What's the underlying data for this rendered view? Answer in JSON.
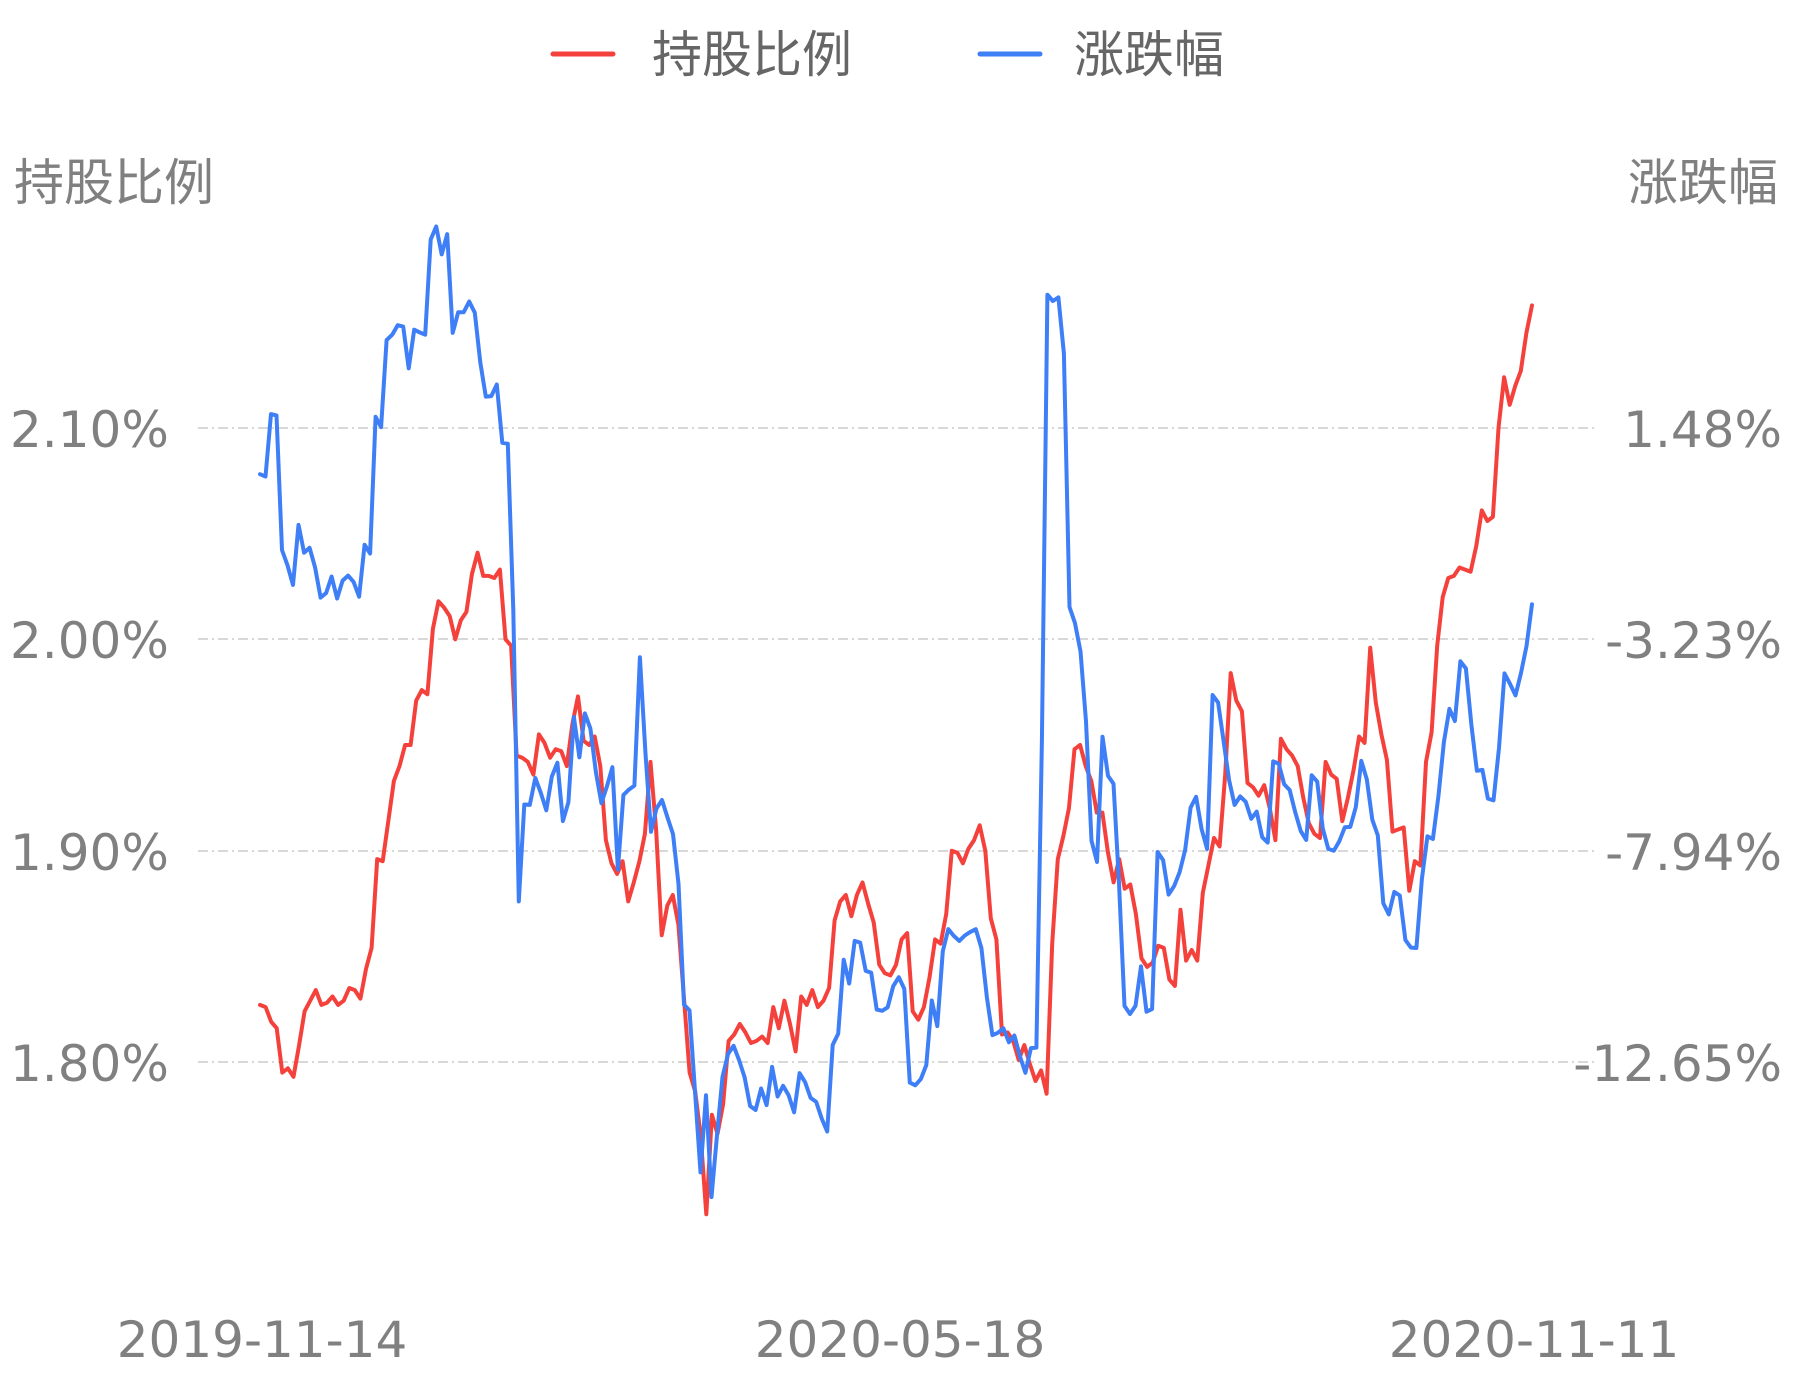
{
  "chart_data": {
    "type": "line",
    "legend": {
      "position": "top-center",
      "items": [
        {
          "label": "持股比例",
          "color": "#f5413c"
        },
        {
          "label": "涨跌幅",
          "color": "#3e7ef7"
        }
      ]
    },
    "y_left": {
      "label": "持股比例",
      "ticks": [
        "2.10%",
        "2.00%",
        "1.90%",
        "1.80%"
      ],
      "tick_values": [
        2.1,
        2.0,
        1.9,
        1.8
      ],
      "range": [
        1.7,
        2.2
      ]
    },
    "y_right": {
      "label": "涨跌幅",
      "ticks": [
        "1.48%",
        "-3.23%",
        "-7.94%",
        "-12.65%"
      ],
      "tick_values": [
        1.48,
        -3.23,
        -7.94,
        -12.65
      ],
      "range": [
        -17.36,
        6.19
      ]
    },
    "x_axis": {
      "ticks": [
        "2019-11-14",
        "2020-05-18",
        "2020-11-11"
      ]
    },
    "grid": true,
    "series": [
      {
        "name": "持股比例",
        "color": "#f5413c",
        "axis": "left",
        "values": [
          1.827,
          1.826,
          1.819,
          1.816,
          1.795,
          1.797,
          1.793,
          1.808,
          1.824,
          1.829,
          1.834,
          1.827,
          1.828,
          1.831,
          1.827,
          1.829,
          1.835,
          1.834,
          1.83,
          1.844,
          1.854,
          1.896,
          1.895,
          1.914,
          1.933,
          1.94,
          1.95,
          1.95,
          1.971,
          1.976,
          1.974,
          2.005,
          2.018,
          2.015,
          2.011,
          2.0,
          2.009,
          2.013,
          2.031,
          2.041,
          2.03,
          2.03,
          2.029,
          2.033,
          2.0,
          1.997,
          1.945,
          1.944,
          1.942,
          1.936,
          1.955,
          1.951,
          1.944,
          1.948,
          1.947,
          1.94,
          1.96,
          1.973,
          1.952,
          1.95,
          1.954,
          1.94,
          1.905,
          1.894,
          1.889,
          1.895,
          1.876,
          1.885,
          1.895,
          1.908,
          1.942,
          1.91,
          1.86,
          1.874,
          1.879,
          1.865,
          1.83,
          1.795,
          1.786,
          1.765,
          1.728,
          1.775,
          1.766,
          1.78,
          1.81,
          1.813,
          1.818,
          1.814,
          1.809,
          1.81,
          1.812,
          1.809,
          1.826,
          1.816,
          1.829,
          1.818,
          1.805,
          1.831,
          1.827,
          1.834,
          1.826,
          1.829,
          1.835,
          1.867,
          1.876,
          1.879,
          1.869,
          1.879,
          1.885,
          1.875,
          1.866,
          1.846,
          1.842,
          1.841,
          1.846,
          1.858,
          1.861,
          1.824,
          1.82,
          1.826,
          1.84,
          1.858,
          1.856,
          1.87,
          1.9,
          1.899,
          1.894,
          1.901,
          1.905,
          1.912,
          1.9,
          1.868,
          1.858,
          1.813,
          1.814,
          1.81,
          1.801,
          1.808,
          1.799,
          1.791,
          1.796,
          1.785,
          1.856,
          1.896,
          1.907,
          1.92,
          1.948,
          1.95,
          1.94,
          1.933,
          1.918,
          1.918,
          1.899,
          1.885,
          1.896,
          1.882,
          1.884,
          1.87,
          1.849,
          1.845,
          1.847,
          1.855,
          1.854,
          1.839,
          1.836,
          1.872,
          1.848,
          1.853,
          1.848,
          1.88,
          1.893,
          1.906,
          1.902,
          1.936,
          1.984,
          1.971,
          1.966,
          1.932,
          1.93,
          1.926,
          1.931,
          1.92,
          1.905,
          1.953,
          1.948,
          1.945,
          1.94,
          1.925,
          1.913,
          1.908,
          1.906,
          1.942,
          1.936,
          1.934,
          1.914,
          1.925,
          1.938,
          1.954,
          1.951,
          1.996,
          1.97,
          1.955,
          1.943,
          1.909,
          1.91,
          1.911,
          1.881,
          1.895,
          1.893,
          1.942,
          1.956,
          1.997,
          2.02,
          2.029,
          2.03,
          2.034,
          2.033,
          2.032,
          2.044,
          2.061,
          2.056,
          2.058,
          2.1,
          2.124,
          2.111,
          2.12,
          2.127,
          2.145,
          2.158
        ]
      },
      {
        "name": "涨跌幅",
        "color": "#3e7ef7",
        "axis": "right",
        "values": [
          0.45,
          0.4,
          1.79,
          1.76,
          -1.24,
          -1.58,
          -2.02,
          -0.68,
          -1.3,
          -1.19,
          -1.63,
          -2.3,
          -2.2,
          -1.83,
          -2.32,
          -1.92,
          -1.81,
          -1.95,
          -2.28,
          -1.12,
          -1.32,
          1.73,
          1.5,
          3.44,
          3.56,
          3.77,
          3.74,
          2.81,
          3.67,
          3.61,
          3.56,
          5.68,
          5.97,
          5.35,
          5.8,
          3.6,
          4.06,
          4.06,
          4.3,
          4.05,
          2.94,
          2.18,
          2.19,
          2.45,
          1.15,
          1.13,
          -2.58,
          -9.07,
          -6.91,
          -6.92,
          -6.32,
          -6.65,
          -7.04,
          -6.29,
          -5.98,
          -7.28,
          -6.86,
          -4.96,
          -5.86,
          -4.88,
          -5.22,
          -6.19,
          -6.88,
          -6.51,
          -6.08,
          -8.36,
          -6.7,
          -6.58,
          -6.49,
          -3.63,
          -5.78,
          -7.52,
          -7.0,
          -6.81,
          -7.2,
          -7.57,
          -8.68,
          -11.37,
          -11.5,
          -13.3,
          -15.11,
          -13.39,
          -15.66,
          -14.28,
          -12.98,
          -12.47,
          -12.29,
          -12.61,
          -12.99,
          -13.63,
          -13.72,
          -13.24,
          -13.61,
          -12.76,
          -13.42,
          -13.18,
          -13.39,
          -13.77,
          -12.9,
          -13.1,
          -13.45,
          -13.54,
          -13.91,
          -14.2,
          -12.27,
          -12.02,
          -10.37,
          -10.9,
          -9.95,
          -9.99,
          -10.62,
          -10.66,
          -11.48,
          -11.51,
          -11.43,
          -10.96,
          -10.76,
          -11.02,
          -13.11,
          -13.17,
          -13.03,
          -12.72,
          -11.28,
          -11.85,
          -10.18,
          -9.69,
          -9.84,
          -9.95,
          -9.83,
          -9.75,
          -9.69,
          -10.11,
          -11.21,
          -12.05,
          -12.0,
          -11.9,
          -12.21,
          -12.06,
          -12.52,
          -12.89,
          -12.34,
          -12.33,
          -5.49,
          4.45,
          4.31,
          4.39,
          3.14,
          -2.51,
          -2.87,
          -3.5,
          -5.06,
          -7.72,
          -8.19,
          -5.4,
          -6.27,
          -6.45,
          -8.66,
          -11.4,
          -11.58,
          -11.4,
          -10.52,
          -11.53,
          -11.47,
          -7.97,
          -8.15,
          -8.92,
          -8.73,
          -8.42,
          -7.93,
          -6.98,
          -6.74,
          -7.46,
          -7.9,
          -4.47,
          -4.64,
          -5.5,
          -6.37,
          -6.92,
          -6.73,
          -6.85,
          -7.23,
          -7.07,
          -7.64,
          -7.76,
          -5.95,
          -6.0,
          -6.46,
          -6.59,
          -7.08,
          -7.5,
          -7.7,
          -6.26,
          -6.4,
          -7.45,
          -7.9,
          -7.94,
          -7.73,
          -7.42,
          -7.41,
          -6.97,
          -5.94,
          -6.35,
          -7.25,
          -7.6,
          -9.11,
          -9.36,
          -8.86,
          -8.94,
          -9.93,
          -10.1,
          -10.11,
          -8.57,
          -7.62,
          -7.68,
          -6.73,
          -5.52,
          -4.78,
          -5.05,
          -3.72,
          -3.88,
          -5.14,
          -6.16,
          -6.14,
          -6.78,
          -6.82,
          -5.65,
          -3.99,
          -4.22,
          -4.48,
          -3.98,
          -3.38,
          -2.45
        ]
      }
    ]
  }
}
